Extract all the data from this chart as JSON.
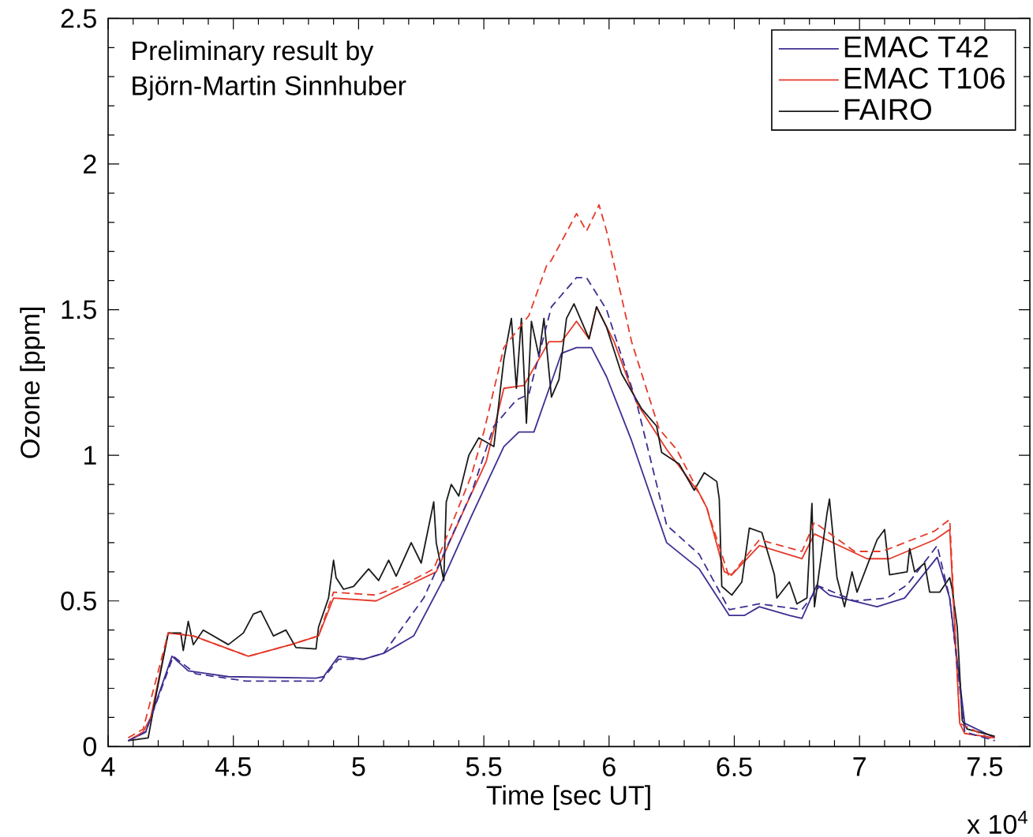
{
  "chart_data": {
    "type": "line",
    "xlabel": "Time [sec UT]",
    "ylabel": "Ozone [ppm]",
    "annotations": [
      "Preliminary result by",
      "Björn-Martin Sinnhuber",
      "x 10$^{4}$"
    ],
    "xlim": [
      4,
      7.68
    ],
    "ylim": [
      0,
      2.5
    ],
    "xticks": [
      4,
      4.5,
      5,
      5.5,
      6,
      6.5,
      7,
      7.5
    ],
    "yticks": [
      0,
      0.5,
      1,
      1.5,
      2,
      2.5
    ],
    "legend": "top right",
    "grid": false,
    "series": [
      {
        "name": "EMAC T42",
        "color": "#3d2f91",
        "line_style": "solid",
        "x": [
          4.08,
          4.15,
          4.255,
          4.32,
          4.48,
          4.83,
          4.86,
          4.92,
          5.02,
          5.1,
          5.16,
          5.22,
          5.33,
          5.45,
          5.58,
          5.64,
          5.7,
          5.81,
          5.87,
          5.93,
          5.99,
          6.09,
          6.23,
          6.36,
          6.48,
          6.54,
          6.6,
          6.72,
          6.77,
          6.83,
          6.88,
          7.07,
          7.18,
          7.31,
          7.36,
          7.42,
          7.54
        ],
        "values": [
          0.02,
          0.05,
          0.31,
          0.26,
          0.24,
          0.235,
          0.24,
          0.31,
          0.3,
          0.32,
          0.35,
          0.38,
          0.56,
          0.79,
          1.03,
          1.08,
          1.08,
          1.35,
          1.37,
          1.37,
          1.27,
          1.05,
          0.7,
          0.61,
          0.45,
          0.45,
          0.48,
          0.45,
          0.44,
          0.555,
          0.52,
          0.48,
          0.51,
          0.65,
          0.51,
          0.08,
          0.03
        ]
      },
      {
        "color": "#3d2f91",
        "line_style": "dashed",
        "x": [
          4.08,
          4.15,
          4.26,
          4.35,
          4.55,
          4.85,
          4.92,
          5.02,
          5.1,
          5.26,
          5.45,
          5.54,
          5.63,
          5.68,
          5.77,
          5.87,
          5.91,
          5.99,
          6.11,
          6.23,
          6.36,
          6.48,
          6.6,
          6.77,
          6.84,
          6.98,
          7.11,
          7.19,
          7.31,
          7.36,
          7.42,
          7.54
        ],
        "values": [
          0.02,
          0.05,
          0.31,
          0.25,
          0.225,
          0.225,
          0.3,
          0.3,
          0.32,
          0.51,
          0.87,
          1.1,
          1.19,
          1.21,
          1.51,
          1.61,
          1.61,
          1.5,
          1.18,
          0.76,
          0.66,
          0.47,
          0.49,
          0.47,
          0.55,
          0.5,
          0.51,
          0.555,
          0.69,
          0.51,
          0.05,
          0.02
        ]
      },
      {
        "name": "EMAC T106",
        "color": "#e53a2a",
        "line_style": "solid",
        "x": [
          4.08,
          4.14,
          4.17,
          4.24,
          4.34,
          4.56,
          4.73,
          4.84,
          4.9,
          5.07,
          5.19,
          5.31,
          5.43,
          5.51,
          5.58,
          5.66,
          5.76,
          5.81,
          5.87,
          5.92,
          5.95,
          6.02,
          6.11,
          6.23,
          6.36,
          6.39,
          6.46,
          6.49,
          6.6,
          6.77,
          6.82,
          7.03,
          7.12,
          7.3,
          7.36,
          7.4,
          7.42,
          7.54
        ],
        "values": [
          0.02,
          0.05,
          0.1,
          0.39,
          0.38,
          0.31,
          0.35,
          0.38,
          0.51,
          0.5,
          0.55,
          0.6,
          0.83,
          0.98,
          1.23,
          1.24,
          1.39,
          1.39,
          1.46,
          1.4,
          1.51,
          1.39,
          1.18,
          1.02,
          0.87,
          0.82,
          0.6,
          0.59,
          0.69,
          0.645,
          0.73,
          0.645,
          0.645,
          0.71,
          0.745,
          0.08,
          0.045,
          0.03
        ]
      },
      {
        "color": "#e53a2a",
        "line_style": "dashed",
        "x": [
          4.08,
          4.14,
          4.24,
          4.34,
          4.56,
          4.73,
          4.84,
          4.9,
          5.07,
          5.19,
          5.3,
          5.45,
          5.5,
          5.58,
          5.68,
          5.75,
          5.77,
          5.87,
          5.91,
          5.96,
          5.99,
          6.09,
          6.2,
          6.27,
          6.39,
          6.48,
          6.6,
          6.77,
          6.82,
          6.98,
          7.09,
          7.3,
          7.36,
          7.4,
          7.54
        ],
        "values": [
          0.03,
          0.06,
          0.39,
          0.38,
          0.31,
          0.35,
          0.38,
          0.53,
          0.52,
          0.56,
          0.61,
          0.93,
          1.08,
          1.37,
          1.48,
          1.65,
          1.67,
          1.83,
          1.77,
          1.86,
          1.77,
          1.39,
          1.09,
          1.02,
          0.82,
          0.58,
          0.71,
          0.67,
          0.77,
          0.67,
          0.67,
          0.74,
          0.78,
          0.08,
          0.02
        ]
      },
      {
        "name": "FAIRO",
        "color": "#1a1a1a",
        "line_style": "solid",
        "x": [
          4.08,
          4.16,
          4.19,
          4.24,
          4.29,
          4.3,
          4.32,
          4.34,
          4.38,
          4.48,
          4.54,
          4.58,
          4.61,
          4.66,
          4.71,
          4.75,
          4.83,
          4.84,
          4.88,
          4.9,
          4.91,
          4.94,
          4.98,
          5.04,
          5.08,
          5.12,
          5.15,
          5.21,
          5.25,
          5.3,
          5.31,
          5.34,
          5.35,
          5.37,
          5.4,
          5.44,
          5.48,
          5.54,
          5.58,
          5.61,
          5.63,
          5.65,
          5.67,
          5.69,
          5.72,
          5.74,
          5.77,
          5.8,
          5.83,
          5.86,
          5.92,
          5.95,
          5.99,
          6.05,
          6.13,
          6.19,
          6.21,
          6.28,
          6.34,
          6.38,
          6.43,
          6.44,
          6.45,
          6.49,
          6.53,
          6.56,
          6.61,
          6.66,
          6.67,
          6.72,
          6.75,
          6.79,
          6.81,
          6.82,
          6.87,
          6.88,
          6.91,
          6.94,
          6.97,
          6.99,
          7.07,
          7.1,
          7.12,
          7.19,
          7.2,
          7.22,
          7.26,
          7.28,
          7.32,
          7.36,
          7.37,
          7.39,
          7.41,
          7.43,
          7.54
        ],
        "values": [
          0.02,
          0.03,
          0.17,
          0.39,
          0.39,
          0.33,
          0.43,
          0.35,
          0.4,
          0.35,
          0.39,
          0.455,
          0.465,
          0.38,
          0.4,
          0.34,
          0.335,
          0.41,
          0.51,
          0.64,
          0.58,
          0.54,
          0.55,
          0.61,
          0.57,
          0.64,
          0.585,
          0.7,
          0.63,
          0.84,
          0.7,
          0.57,
          0.84,
          0.9,
          0.86,
          1.0,
          1.06,
          1.03,
          1.33,
          1.47,
          1.23,
          1.47,
          1.11,
          1.46,
          1.34,
          1.47,
          1.2,
          1.26,
          1.47,
          1.52,
          1.4,
          1.51,
          1.44,
          1.28,
          1.16,
          1.1,
          1.01,
          0.97,
          0.88,
          0.94,
          0.91,
          0.85,
          0.55,
          0.52,
          0.565,
          0.75,
          0.735,
          0.59,
          0.51,
          0.565,
          0.49,
          0.51,
          0.835,
          0.48,
          0.8,
          0.85,
          0.58,
          0.48,
          0.6,
          0.53,
          0.71,
          0.745,
          0.59,
          0.6,
          0.68,
          0.6,
          0.63,
          0.53,
          0.53,
          0.58,
          0.54,
          0.41,
          0.09,
          0.06,
          0.035
        ]
      }
    ]
  }
}
